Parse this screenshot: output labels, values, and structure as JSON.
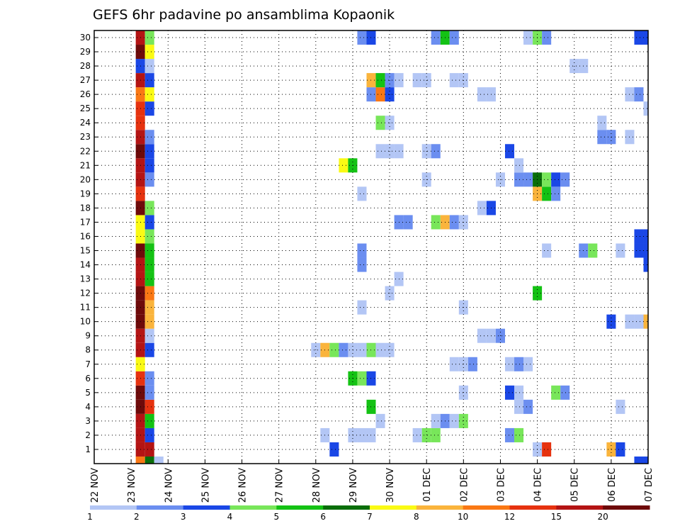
{
  "chart_data": {
    "type": "heatmap",
    "title": "GEFS 6hr padavine po ansamblima Kopaonik",
    "x_tick_labels": [
      "22 NOV",
      "23 NOV",
      "24 NOV",
      "25 NOV",
      "26 NOV",
      "27 NOV",
      "28 NOV",
      "29 NOV",
      "30 NOV",
      "01 DEC",
      "02 DEC",
      "03 DEC",
      "04 DEC",
      "05 DEC",
      "06 DEC",
      "07 DEC"
    ],
    "y_tick_labels": [
      "1",
      "2",
      "3",
      "4",
      "5",
      "6",
      "7",
      "8",
      "9",
      "10",
      "11",
      "12",
      "13",
      "14",
      "15",
      "16",
      "17",
      "18",
      "19",
      "20",
      "21",
      "22",
      "23",
      "24",
      "25",
      "26",
      "27",
      "28",
      "29",
      "30"
    ],
    "xlim": [
      0,
      60
    ],
    "ylim": [
      0,
      30.5
    ],
    "grid": true,
    "levels": [
      "1",
      "2",
      "3",
      "4",
      "5",
      "6",
      "7",
      "8",
      "10",
      "12",
      "15",
      "20"
    ],
    "colors": [
      "#b3c6f5",
      "#6b8ef0",
      "#1a47e6",
      "#78e65a",
      "#14c214",
      "#0a6e0a",
      "#fafa14",
      "#fab43c",
      "#fa7814",
      "#e6320f",
      "#b41414",
      "#6e0a0a"
    ],
    "cells": [
      {
        "x": 5,
        "y": 0,
        "l": 8
      },
      {
        "x": 6,
        "y": 0,
        "l": 5
      },
      {
        "x": 7,
        "y": 0,
        "l": 0
      },
      {
        "x": 59,
        "y": 0,
        "l": 2
      },
      {
        "x": 60,
        "y": 0,
        "l": 2
      },
      {
        "x": 5,
        "y": 1,
        "l": 10
      },
      {
        "x": 6,
        "y": 1,
        "l": 10
      },
      {
        "x": 26,
        "y": 1,
        "l": 2
      },
      {
        "x": 48,
        "y": 1,
        "l": 0
      },
      {
        "x": 49,
        "y": 1,
        "l": 9
      },
      {
        "x": 56,
        "y": 1,
        "l": 7
      },
      {
        "x": 57,
        "y": 1,
        "l": 2
      },
      {
        "x": 5,
        "y": 2,
        "l": 10
      },
      {
        "x": 6,
        "y": 2,
        "l": 2
      },
      {
        "x": 25,
        "y": 2,
        "l": 0
      },
      {
        "x": 28,
        "y": 2,
        "l": 0
      },
      {
        "x": 29,
        "y": 2,
        "l": 0
      },
      {
        "x": 30,
        "y": 2,
        "l": 0
      },
      {
        "x": 35,
        "y": 2,
        "l": 0
      },
      {
        "x": 36,
        "y": 2,
        "l": 3
      },
      {
        "x": 37,
        "y": 2,
        "l": 3
      },
      {
        "x": 45,
        "y": 2,
        "l": 1
      },
      {
        "x": 46,
        "y": 2,
        "l": 3
      },
      {
        "x": 5,
        "y": 3,
        "l": 10
      },
      {
        "x": 6,
        "y": 3,
        "l": 4
      },
      {
        "x": 31,
        "y": 3,
        "l": 0
      },
      {
        "x": 37,
        "y": 3,
        "l": 0
      },
      {
        "x": 38,
        "y": 3,
        "l": 1
      },
      {
        "x": 39,
        "y": 3,
        "l": 0
      },
      {
        "x": 40,
        "y": 3,
        "l": 3
      },
      {
        "x": 5,
        "y": 4,
        "l": 11
      },
      {
        "x": 6,
        "y": 4,
        "l": 9
      },
      {
        "x": 30,
        "y": 4,
        "l": 4
      },
      {
        "x": 46,
        "y": 4,
        "l": 0
      },
      {
        "x": 47,
        "y": 4,
        "l": 1
      },
      {
        "x": 57,
        "y": 4,
        "l": 0
      },
      {
        "x": 5,
        "y": 5,
        "l": 11
      },
      {
        "x": 6,
        "y": 5,
        "l": 1
      },
      {
        "x": 40,
        "y": 5,
        "l": 0
      },
      {
        "x": 45,
        "y": 5,
        "l": 2
      },
      {
        "x": 46,
        "y": 5,
        "l": 0
      },
      {
        "x": 50,
        "y": 5,
        "l": 3
      },
      {
        "x": 51,
        "y": 5,
        "l": 1
      },
      {
        "x": 5,
        "y": 6,
        "l": 9
      },
      {
        "x": 6,
        "y": 6,
        "l": 1
      },
      {
        "x": 28,
        "y": 6,
        "l": 4
      },
      {
        "x": 29,
        "y": 6,
        "l": 3
      },
      {
        "x": 30,
        "y": 6,
        "l": 2
      },
      {
        "x": 5,
        "y": 7,
        "l": 6
      },
      {
        "x": 39,
        "y": 7,
        "l": 0
      },
      {
        "x": 40,
        "y": 7,
        "l": 0
      },
      {
        "x": 41,
        "y": 7,
        "l": 1
      },
      {
        "x": 45,
        "y": 7,
        "l": 0
      },
      {
        "x": 46,
        "y": 7,
        "l": 1
      },
      {
        "x": 47,
        "y": 7,
        "l": 0
      },
      {
        "x": 5,
        "y": 8,
        "l": 10
      },
      {
        "x": 6,
        "y": 8,
        "l": 2
      },
      {
        "x": 24,
        "y": 8,
        "l": 0
      },
      {
        "x": 25,
        "y": 8,
        "l": 7
      },
      {
        "x": 26,
        "y": 8,
        "l": 3
      },
      {
        "x": 27,
        "y": 8,
        "l": 1
      },
      {
        "x": 28,
        "y": 8,
        "l": 0
      },
      {
        "x": 29,
        "y": 8,
        "l": 0
      },
      {
        "x": 30,
        "y": 8,
        "l": 3
      },
      {
        "x": 31,
        "y": 8,
        "l": 0
      },
      {
        "x": 32,
        "y": 8,
        "l": 0
      },
      {
        "x": 5,
        "y": 9,
        "l": 10
      },
      {
        "x": 6,
        "y": 9,
        "l": 0
      },
      {
        "x": 42,
        "y": 9,
        "l": 0
      },
      {
        "x": 43,
        "y": 9,
        "l": 0
      },
      {
        "x": 44,
        "y": 9,
        "l": 1
      },
      {
        "x": 5,
        "y": 10,
        "l": 11
      },
      {
        "x": 6,
        "y": 10,
        "l": 7
      },
      {
        "x": 56,
        "y": 10,
        "l": 2
      },
      {
        "x": 58,
        "y": 10,
        "l": 0
      },
      {
        "x": 59,
        "y": 10,
        "l": 0
      },
      {
        "x": 60,
        "y": 10,
        "l": 7
      },
      {
        "x": 5,
        "y": 11,
        "l": 11
      },
      {
        "x": 6,
        "y": 11,
        "l": 7
      },
      {
        "x": 29,
        "y": 11,
        "l": 0
      },
      {
        "x": 40,
        "y": 11,
        "l": 0
      },
      {
        "x": 5,
        "y": 12,
        "l": 11
      },
      {
        "x": 6,
        "y": 12,
        "l": 8
      },
      {
        "x": 32,
        "y": 12,
        "l": 0
      },
      {
        "x": 48,
        "y": 12,
        "l": 4
      },
      {
        "x": 5,
        "y": 13,
        "l": 10
      },
      {
        "x": 6,
        "y": 13,
        "l": 4
      },
      {
        "x": 33,
        "y": 13,
        "l": 0
      },
      {
        "x": 5,
        "y": 14,
        "l": 10
      },
      {
        "x": 6,
        "y": 14,
        "l": 4
      },
      {
        "x": 29,
        "y": 14,
        "l": 1
      },
      {
        "x": 60,
        "y": 14,
        "l": 2
      },
      {
        "x": 5,
        "y": 15,
        "l": 11
      },
      {
        "x": 6,
        "y": 15,
        "l": 4
      },
      {
        "x": 29,
        "y": 15,
        "l": 1
      },
      {
        "x": 49,
        "y": 15,
        "l": 0
      },
      {
        "x": 53,
        "y": 15,
        "l": 1
      },
      {
        "x": 54,
        "y": 15,
        "l": 3
      },
      {
        "x": 57,
        "y": 15,
        "l": 0
      },
      {
        "x": 59,
        "y": 15,
        "l": 2
      },
      {
        "x": 60,
        "y": 15,
        "l": 2
      },
      {
        "x": 5,
        "y": 16,
        "l": 6
      },
      {
        "x": 6,
        "y": 16,
        "l": 3
      },
      {
        "x": 59,
        "y": 16,
        "l": 2
      },
      {
        "x": 60,
        "y": 16,
        "l": 2
      },
      {
        "x": 5,
        "y": 17,
        "l": 6
      },
      {
        "x": 6,
        "y": 17,
        "l": 2
      },
      {
        "x": 33,
        "y": 17,
        "l": 1
      },
      {
        "x": 34,
        "y": 17,
        "l": 1
      },
      {
        "x": 37,
        "y": 17,
        "l": 3
      },
      {
        "x": 38,
        "y": 17,
        "l": 7
      },
      {
        "x": 39,
        "y": 17,
        "l": 1
      },
      {
        "x": 40,
        "y": 17,
        "l": 0
      },
      {
        "x": 5,
        "y": 18,
        "l": 11
      },
      {
        "x": 6,
        "y": 18,
        "l": 3
      },
      {
        "x": 42,
        "y": 18,
        "l": 0
      },
      {
        "x": 43,
        "y": 18,
        "l": 2
      },
      {
        "x": 5,
        "y": 19,
        "l": 9
      },
      {
        "x": 29,
        "y": 19,
        "l": 0
      },
      {
        "x": 48,
        "y": 19,
        "l": 7
      },
      {
        "x": 49,
        "y": 19,
        "l": 4
      },
      {
        "x": 50,
        "y": 19,
        "l": 1
      },
      {
        "x": 5,
        "y": 20,
        "l": 10
      },
      {
        "x": 6,
        "y": 20,
        "l": 1
      },
      {
        "x": 36,
        "y": 20,
        "l": 0
      },
      {
        "x": 44,
        "y": 20,
        "l": 0
      },
      {
        "x": 46,
        "y": 20,
        "l": 1
      },
      {
        "x": 47,
        "y": 20,
        "l": 1
      },
      {
        "x": 48,
        "y": 20,
        "l": 5
      },
      {
        "x": 49,
        "y": 20,
        "l": 3
      },
      {
        "x": 50,
        "y": 20,
        "l": 2
      },
      {
        "x": 51,
        "y": 20,
        "l": 1
      },
      {
        "x": 5,
        "y": 21,
        "l": 10
      },
      {
        "x": 6,
        "y": 21,
        "l": 2
      },
      {
        "x": 27,
        "y": 21,
        "l": 6
      },
      {
        "x": 28,
        "y": 21,
        "l": 4
      },
      {
        "x": 46,
        "y": 21,
        "l": 0
      },
      {
        "x": 5,
        "y": 22,
        "l": 11
      },
      {
        "x": 6,
        "y": 22,
        "l": 2
      },
      {
        "x": 31,
        "y": 22,
        "l": 0
      },
      {
        "x": 32,
        "y": 22,
        "l": 0
      },
      {
        "x": 33,
        "y": 22,
        "l": 0
      },
      {
        "x": 36,
        "y": 22,
        "l": 0
      },
      {
        "x": 37,
        "y": 22,
        "l": 1
      },
      {
        "x": 45,
        "y": 22,
        "l": 2
      },
      {
        "x": 5,
        "y": 23,
        "l": 10
      },
      {
        "x": 6,
        "y": 23,
        "l": 1
      },
      {
        "x": 55,
        "y": 23,
        "l": 1
      },
      {
        "x": 56,
        "y": 23,
        "l": 1
      },
      {
        "x": 58,
        "y": 23,
        "l": 0
      },
      {
        "x": 5,
        "y": 24,
        "l": 9
      },
      {
        "x": 31,
        "y": 24,
        "l": 3
      },
      {
        "x": 32,
        "y": 24,
        "l": 0
      },
      {
        "x": 55,
        "y": 24,
        "l": 0
      },
      {
        "x": 5,
        "y": 25,
        "l": 9
      },
      {
        "x": 6,
        "y": 25,
        "l": 2
      },
      {
        "x": 60,
        "y": 25,
        "l": 0
      },
      {
        "x": 5,
        "y": 26,
        "l": 8
      },
      {
        "x": 6,
        "y": 26,
        "l": 6
      },
      {
        "x": 30,
        "y": 26,
        "l": 1
      },
      {
        "x": 31,
        "y": 26,
        "l": 8
      },
      {
        "x": 32,
        "y": 26,
        "l": 2
      },
      {
        "x": 42,
        "y": 26,
        "l": 0
      },
      {
        "x": 43,
        "y": 26,
        "l": 0
      },
      {
        "x": 58,
        "y": 26,
        "l": 0
      },
      {
        "x": 59,
        "y": 26,
        "l": 1
      },
      {
        "x": 5,
        "y": 27,
        "l": 10
      },
      {
        "x": 6,
        "y": 27,
        "l": 2
      },
      {
        "x": 30,
        "y": 27,
        "l": 7
      },
      {
        "x": 31,
        "y": 27,
        "l": 4
      },
      {
        "x": 32,
        "y": 27,
        "l": 1
      },
      {
        "x": 33,
        "y": 27,
        "l": 0
      },
      {
        "x": 35,
        "y": 27,
        "l": 0
      },
      {
        "x": 36,
        "y": 27,
        "l": 0
      },
      {
        "x": 39,
        "y": 27,
        "l": 0
      },
      {
        "x": 40,
        "y": 27,
        "l": 0
      },
      {
        "x": 5,
        "y": 28,
        "l": 2
      },
      {
        "x": 6,
        "y": 28,
        "l": 0
      },
      {
        "x": 52,
        "y": 28,
        "l": 0
      },
      {
        "x": 53,
        "y": 28,
        "l": 0
      },
      {
        "x": 5,
        "y": 29,
        "l": 11
      },
      {
        "x": 6,
        "y": 29,
        "l": 6
      },
      {
        "x": 5,
        "y": 30,
        "l": 10
      },
      {
        "x": 6,
        "y": 30,
        "l": 3
      },
      {
        "x": 29,
        "y": 30,
        "l": 1
      },
      {
        "x": 30,
        "y": 30,
        "l": 2
      },
      {
        "x": 37,
        "y": 30,
        "l": 1
      },
      {
        "x": 38,
        "y": 30,
        "l": 4
      },
      {
        "x": 39,
        "y": 30,
        "l": 1
      },
      {
        "x": 47,
        "y": 30,
        "l": 0
      },
      {
        "x": 48,
        "y": 30,
        "l": 3
      },
      {
        "x": 49,
        "y": 30,
        "l": 1
      },
      {
        "x": 59,
        "y": 30,
        "l": 2
      },
      {
        "x": 60,
        "y": 30,
        "l": 2
      }
    ]
  }
}
